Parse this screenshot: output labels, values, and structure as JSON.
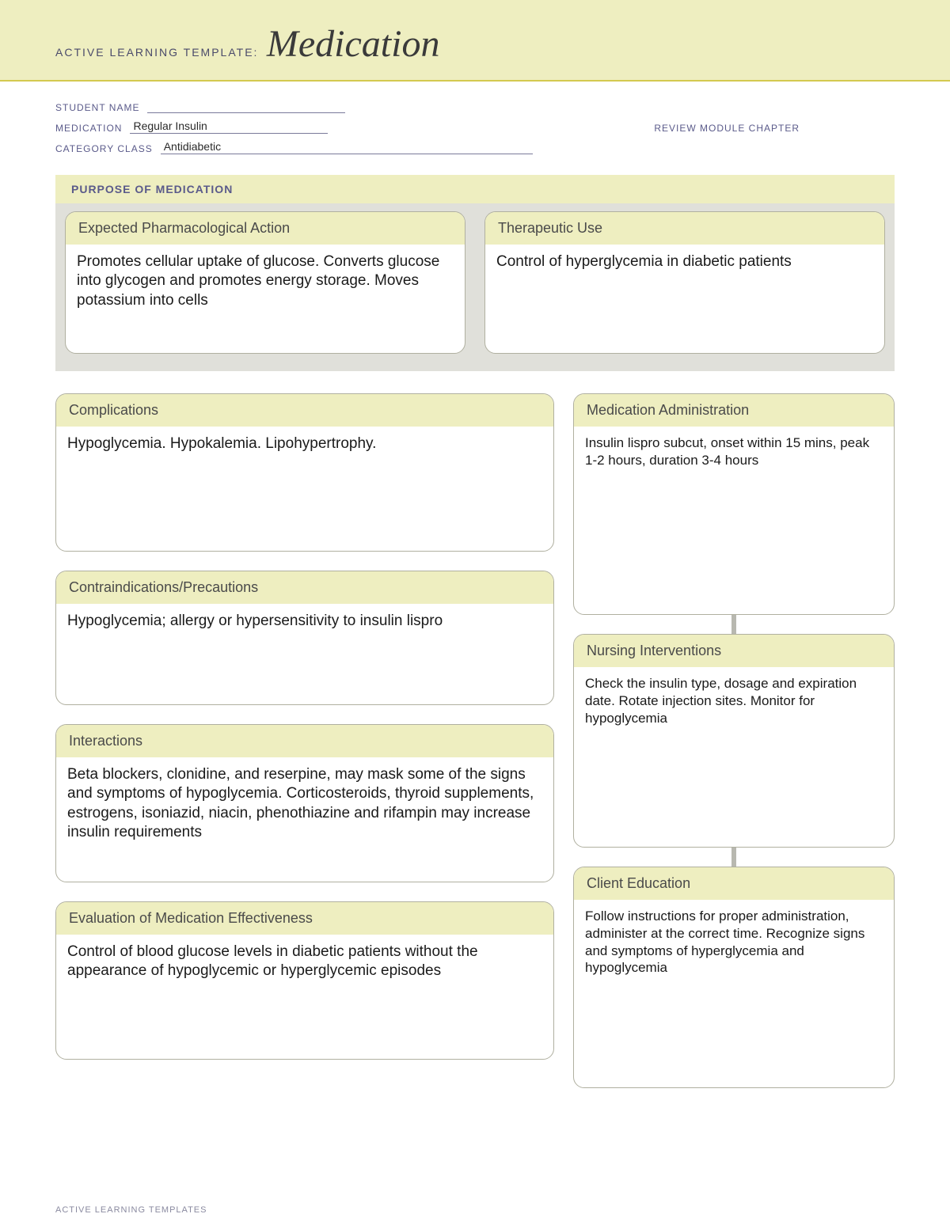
{
  "banner": {
    "prefix": "ACTIVE LEARNING TEMPLATE:",
    "title": "Medication"
  },
  "meta": {
    "student_name_label": "STUDENT NAME",
    "student_name_value": "",
    "medication_label": "MEDICATION",
    "medication_value": "Regular Insulin",
    "category_label": "CATEGORY CLASS",
    "category_value": "Antidiabetic",
    "review_label": "REVIEW MODULE CHAPTER"
  },
  "purpose": {
    "section_label": "PURPOSE OF MEDICATION",
    "pharm_action": {
      "title": "Expected Pharmacological Action",
      "body": "Promotes cellular uptake of glucose. Converts glucose into glycogen and promotes energy storage. Moves potassium into cells"
    },
    "therapeutic_use": {
      "title": "Therapeutic Use",
      "body": "Control of hyperglycemia in diabetic patients"
    }
  },
  "left": {
    "complications": {
      "title": "Complications",
      "body": "Hypoglycemia. Hypokalemia. Lipohypertrophy."
    },
    "contraindications": {
      "title": "Contraindications/Precautions",
      "body": "Hypoglycemia; allergy or hypersensitivity to insulin lispro"
    },
    "interactions": {
      "title": "Interactions",
      "body": "Beta blockers, clonidine, and reserpine, may mask some of the signs and symptoms of hypoglycemia. Corticosteroids, thyroid supplements, estrogens, isoniazid, niacin, phenothiazine and rifampin may increase insulin requirements"
    },
    "evaluation": {
      "title": "Evaluation of Medication Effectiveness",
      "body": "Control of blood glucose levels in diabetic patients without the appearance of hypoglycemic or hyperglycemic episodes"
    }
  },
  "right": {
    "administration": {
      "title": "Medication Administration",
      "body": "Insulin lispro subcut, onset within 15 mins, peak 1-2 hours, duration 3-4 hours"
    },
    "nursing": {
      "title": "Nursing Interventions",
      "body": "Check the insulin type, dosage and expiration date. Rotate injection sites. Monitor for hypoglycemia"
    },
    "education": {
      "title": "Client Education",
      "body": "Follow instructions for proper administration, administer at the correct time. Recognize signs and symptoms of hyperglycemia and hypoglycemia"
    }
  },
  "footer": "ACTIVE LEARNING TEMPLATES"
}
